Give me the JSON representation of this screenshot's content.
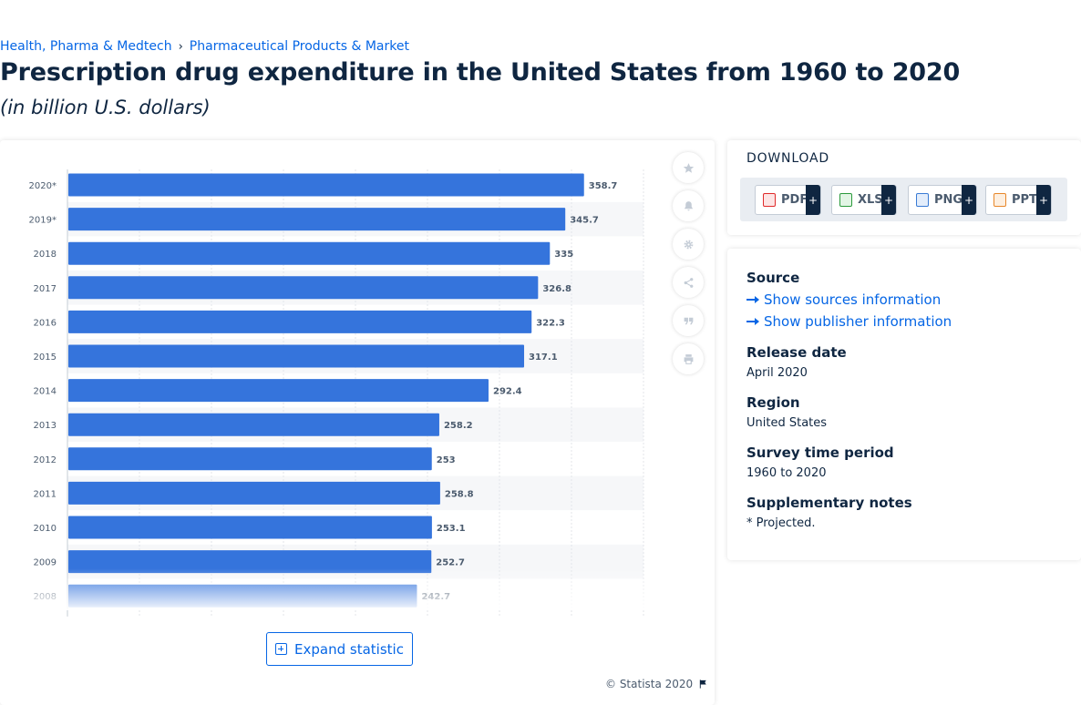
{
  "breadcrumb": {
    "item1": "Health, Pharma & Medtech",
    "separator": "›",
    "item2": "Pharmaceutical Products & Market"
  },
  "page": {
    "title": "Prescription drug expenditure in the United States from 1960 to 2020",
    "subtitle": "(in billion U.S. dollars)"
  },
  "chart_data": {
    "type": "bar",
    "orientation": "horizontal",
    "title": "",
    "xlabel": "",
    "ylabel": "",
    "categories": [
      "2020*",
      "2019*",
      "2018",
      "2017",
      "2016",
      "2015",
      "2014",
      "2013",
      "2012",
      "2011",
      "2010",
      "2009",
      "2008"
    ],
    "values": [
      358.7,
      345.7,
      335,
      326.8,
      322.3,
      317.1,
      292.4,
      258.2,
      253,
      258.8,
      253.1,
      252.7,
      242.7
    ],
    "labels": [
      "358.7",
      "345.7",
      "335",
      "326.8",
      "322.3",
      "317.1",
      "292.4",
      "258.2",
      "253",
      "258.8",
      "253.1",
      "252.7",
      "242.7"
    ],
    "xlim": [
      0,
      400
    ],
    "grid": true,
    "bar_color": "#3574dc"
  },
  "tools": [
    "star-icon",
    "bell-icon",
    "gear-icon",
    "share-icon",
    "quote-icon",
    "print-icon"
  ],
  "expand_label": "Expand statistic",
  "copyright": "© Statista 2020",
  "download": {
    "title": "DOWNLOAD",
    "buttons": [
      {
        "label": "PDF",
        "icon": "pdf-file-icon",
        "color": "#e02a2a"
      },
      {
        "label": "XLS",
        "icon": "xls-file-icon",
        "color": "#2b9a3c"
      },
      {
        "label": "PNG",
        "icon": "png-file-icon",
        "color": "#3a7bd5"
      },
      {
        "label": "PPT",
        "icon": "ppt-file-icon",
        "color": "#e8872a"
      }
    ],
    "plus": "+"
  },
  "info": {
    "source_head": "Source",
    "sources_link": "Show sources information",
    "publisher_link": "Show publisher information",
    "release_head": "Release date",
    "release_val": "April 2020",
    "region_head": "Region",
    "region_val": "United States",
    "survey_head": "Survey time period",
    "survey_val": "1960 to 2020",
    "notes_head": "Supplementary notes",
    "notes_val": "* Projected."
  }
}
